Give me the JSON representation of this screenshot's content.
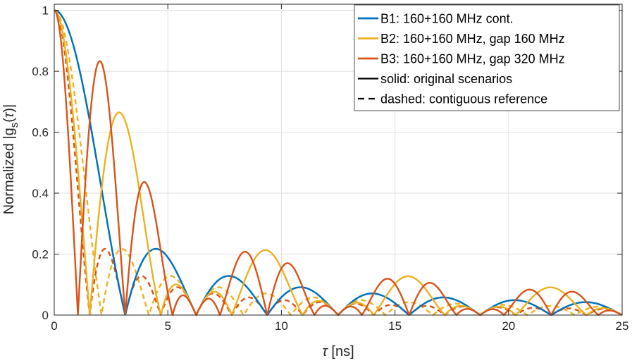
{
  "chart_data": {
    "type": "line",
    "xlabel": "τ [ns]",
    "ylabel": "Normalized |g_s(τ)|",
    "xlim": [
      0,
      25
    ],
    "ylim": [
      0,
      1.02
    ],
    "x_ticks": [
      0,
      5,
      10,
      15,
      20,
      25
    ],
    "y_ticks": [
      0,
      0.2,
      0.4,
      0.6,
      0.8,
      1
    ],
    "x_tick_labels": [
      "0",
      "5",
      "10",
      "15",
      "20",
      "25"
    ],
    "y_tick_labels": [
      "0",
      "0.2",
      "0.4",
      "0.6",
      "0.8",
      "1"
    ],
    "grid": true,
    "legend_position": "top-right",
    "legend": [
      {
        "label": "B1: 160+160 MHz cont.",
        "color": "#0072BD",
        "style": "solid"
      },
      {
        "label": "B2: 160+160 MHz, gap 160 MHz",
        "color": "#EDB120",
        "style": "solid"
      },
      {
        "label": "B3: 160+160 MHz, gap 320 MHz",
        "color": "#D95319",
        "style": "solid"
      },
      {
        "label": "solid: original scenarios",
        "color": "#000000",
        "style": "solid"
      },
      {
        "label": "dashed: contiguous reference",
        "color": "#000000",
        "style": "dashed"
      }
    ],
    "series": [
      {
        "name": "B1: 160+160 MHz cont.",
        "color": "#0072BD",
        "style": "solid",
        "model": {
          "bandwidth_ghz": 0.32,
          "gap_ghz": 0.0,
          "sub_bandwidth_ghz": 0.16
        },
        "sample_points": [
          [
            0,
            1.0
          ],
          [
            1.5625,
            0.637
          ],
          [
            3.125,
            0.0
          ],
          [
            4.6,
            0.22
          ],
          [
            6.25,
            0.0
          ],
          [
            7.8,
            0.13
          ],
          [
            9.375,
            0.0
          ],
          [
            10.9,
            0.09
          ],
          [
            12.5,
            0.0
          ]
        ]
      },
      {
        "name": "B2: 160+160 MHz, gap 160 MHz",
        "color": "#EDB120",
        "style": "solid",
        "model": {
          "bandwidth_ghz": 0.32,
          "gap_ghz": 0.16,
          "sub_bandwidth_ghz": 0.16
        },
        "sample_points": [
          [
            0,
            1.0
          ],
          [
            2.9,
            0.68
          ],
          [
            5.2,
            0.12
          ],
          [
            9.375,
            0.21
          ],
          [
            15.6,
            0.13
          ],
          [
            21.9,
            0.09
          ]
        ]
      },
      {
        "name": "B3: 160+160 MHz, gap 320 MHz",
        "color": "#D95319",
        "style": "solid",
        "model": {
          "bandwidth_ghz": 0.32,
          "gap_ghz": 0.32,
          "sub_bandwidth_ghz": 0.16
        },
        "sample_points": [
          [
            0,
            1.0
          ],
          [
            2.1,
            0.84
          ],
          [
            4.0,
            0.46
          ],
          [
            8.3,
            0.2
          ],
          [
            10.4,
            0.18
          ]
        ]
      },
      {
        "name": "B1 contiguous reference",
        "color": "#0072BD",
        "style": "dashed",
        "model": {
          "bandwidth_ghz": 0.32,
          "gap_ghz": 0.0,
          "sub_bandwidth_ghz": 0.16
        },
        "sample_points": [
          [
            0,
            1.0
          ],
          [
            3.125,
            0.0
          ],
          [
            6.25,
            0.0
          ]
        ]
      },
      {
        "name": "B2 contiguous reference",
        "color": "#EDB120",
        "style": "dashed",
        "model": {
          "bandwidth_ghz": 0.48,
          "gap_ghz": 0.0,
          "sub_bandwidth_ghz": 0.24
        },
        "sample_points": [
          [
            0,
            1.0
          ],
          [
            2.08,
            0.0
          ],
          [
            3.0,
            0.21
          ],
          [
            4.17,
            0.0
          ]
        ]
      },
      {
        "name": "B3 contiguous reference",
        "color": "#D95319",
        "style": "dashed",
        "model": {
          "bandwidth_ghz": 0.64,
          "gap_ghz": 0.0,
          "sub_bandwidth_ghz": 0.32
        },
        "sample_points": [
          [
            0,
            1.0
          ],
          [
            1.5625,
            0.0
          ],
          [
            2.3,
            0.22
          ],
          [
            3.125,
            0.0
          ]
        ]
      }
    ]
  }
}
